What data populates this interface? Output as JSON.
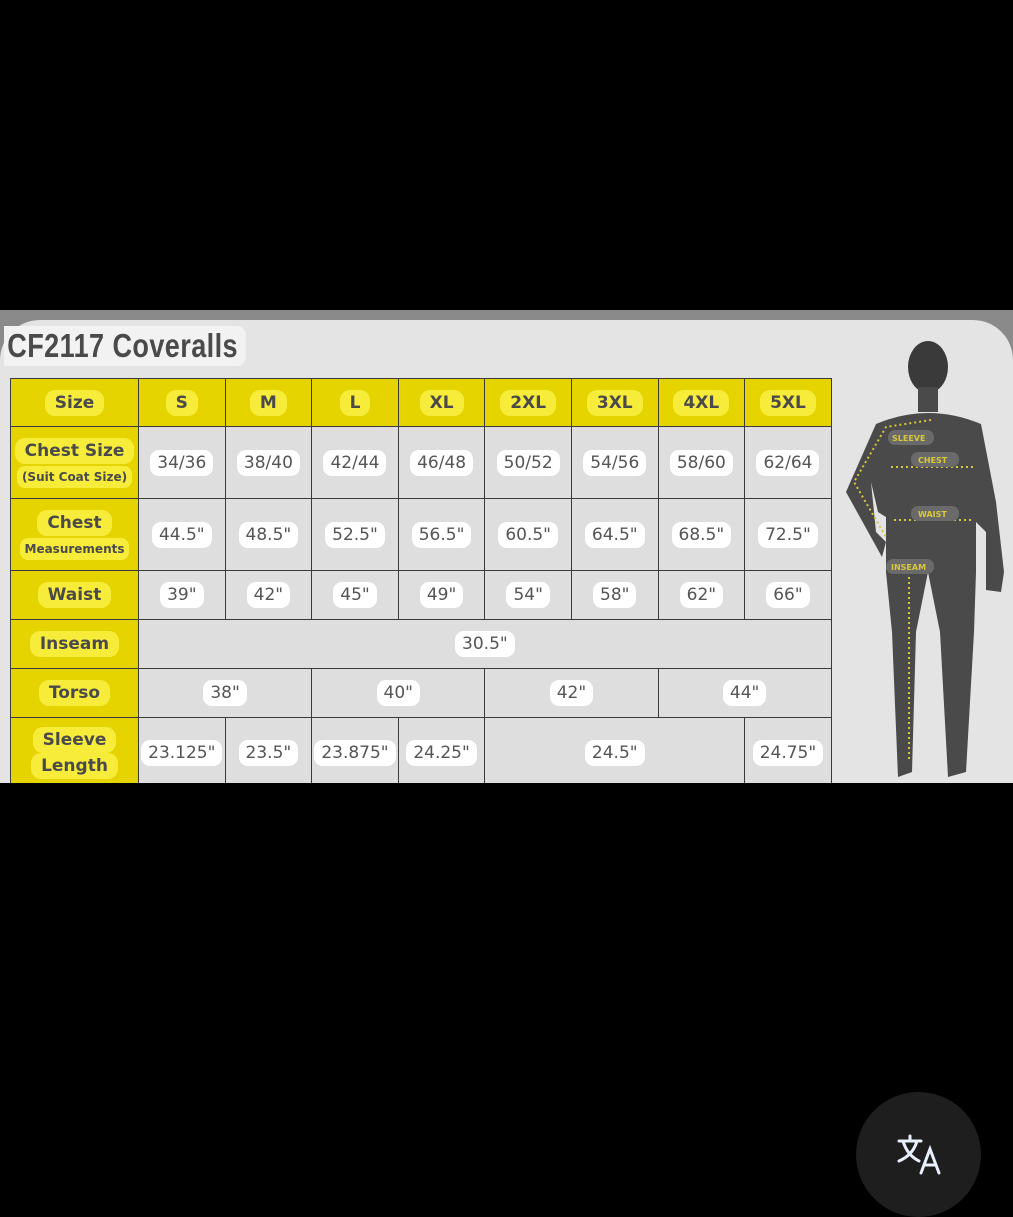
{
  "chart_data": {
    "type": "table",
    "title": "CF2117  Coveralls",
    "columns": [
      "Size",
      "S",
      "M",
      "L",
      "XL",
      "2XL",
      "3XL",
      "4XL",
      "5XL"
    ],
    "rows": [
      {
        "label": "Chest Size",
        "sublabel": "(Suit Coat Size)",
        "cells": [
          {
            "v": "34/36",
            "span": 1
          },
          {
            "v": "38/40",
            "span": 1
          },
          {
            "v": "42/44",
            "span": 1
          },
          {
            "v": "46/48",
            "span": 1
          },
          {
            "v": "50/52",
            "span": 1
          },
          {
            "v": "54/56",
            "span": 1
          },
          {
            "v": "58/60",
            "span": 1
          },
          {
            "v": "62/64",
            "span": 1
          }
        ]
      },
      {
        "label": "Chest",
        "sublabel": "Measurements",
        "cells": [
          {
            "v": "44.5\"",
            "span": 1
          },
          {
            "v": "48.5\"",
            "span": 1
          },
          {
            "v": "52.5\"",
            "span": 1
          },
          {
            "v": "56.5\"",
            "span": 1
          },
          {
            "v": "60.5\"",
            "span": 1
          },
          {
            "v": "64.5\"",
            "span": 1
          },
          {
            "v": "68.5\"",
            "span": 1
          },
          {
            "v": "72.5\"",
            "span": 1
          }
        ]
      },
      {
        "label": "Waist",
        "sublabel": "",
        "cells": [
          {
            "v": "39\"",
            "span": 1
          },
          {
            "v": "42\"",
            "span": 1
          },
          {
            "v": "45\"",
            "span": 1
          },
          {
            "v": "49\"",
            "span": 1
          },
          {
            "v": "54\"",
            "span": 1
          },
          {
            "v": "58\"",
            "span": 1
          },
          {
            "v": "62\"",
            "span": 1
          },
          {
            "v": "66\"",
            "span": 1
          }
        ]
      },
      {
        "label": "Inseam",
        "sublabel": "",
        "cells": [
          {
            "v": "30.5\"",
            "span": 8
          }
        ]
      },
      {
        "label": "Torso",
        "sublabel": "",
        "cells": [
          {
            "v": "38\"",
            "span": 2
          },
          {
            "v": "40\"",
            "span": 2
          },
          {
            "v": "42\"",
            "span": 2
          },
          {
            "v": "44\"",
            "span": 2
          }
        ]
      },
      {
        "label": "Sleeve",
        "sublabel": "Length",
        "cells": [
          {
            "v": "23.125\"",
            "span": 1
          },
          {
            "v": "23.5\"",
            "span": 1
          },
          {
            "v": "23.875\"",
            "span": 1
          },
          {
            "v": "24.25\"",
            "span": 1
          },
          {
            "v": "24.5\"",
            "span": 3
          },
          {
            "v": "24.75\"",
            "span": 1
          }
        ]
      }
    ],
    "header_color": "#e6d400"
  },
  "figure_labels": {
    "sleeve": "SLEEVE",
    "chest": "CHEST",
    "waist": "WAIST",
    "inseam": "INSEAM"
  },
  "translate_button": {
    "icon": "translate-icon"
  }
}
